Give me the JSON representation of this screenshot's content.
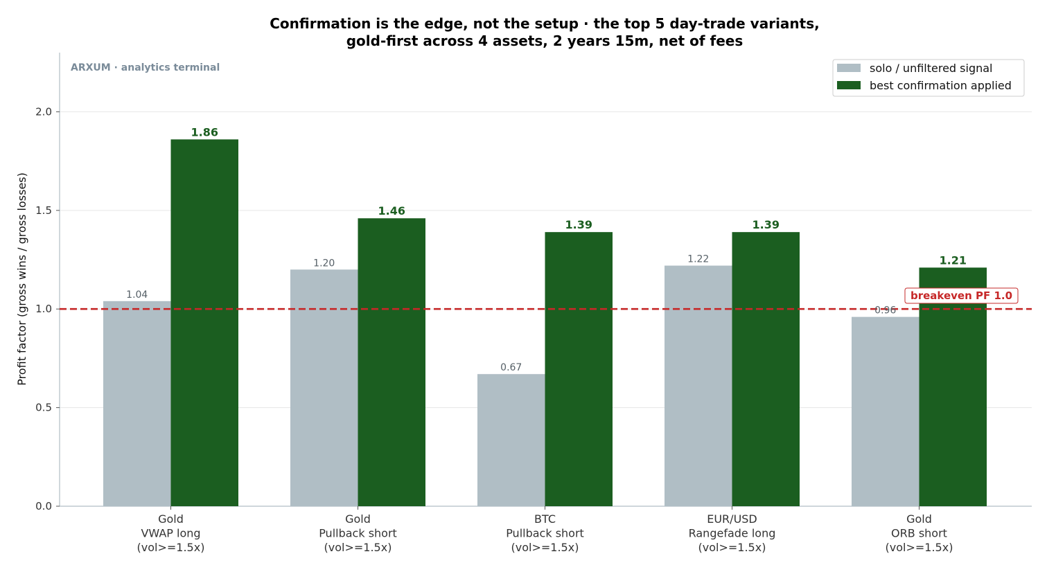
{
  "chart_data": {
    "type": "bar",
    "title_lines": [
      "Confirmation is the edge, not the setup · the top 5 day-trade variants,",
      "gold-first across 4 assets, 2 years 15m, net of fees"
    ],
    "watermark": "ARXUM · analytics terminal",
    "ylabel": "Profit factor (gross wins / gross losses)",
    "xlabel": "",
    "ylim": [
      0,
      2.3
    ],
    "yticks": [
      0.0,
      0.5,
      1.0,
      1.5,
      2.0
    ],
    "ytick_labels": [
      "0.0",
      "0.5",
      "1.0",
      "1.5",
      "2.0"
    ],
    "grid": "horizontal",
    "legend_position": "top-right",
    "categories": [
      [
        "Gold",
        "VWAP long",
        "(vol>=1.5x)"
      ],
      [
        "Gold",
        "Pullback short",
        "(vol>=1.5x)"
      ],
      [
        "BTC",
        "Pullback short",
        "(vol>=1.5x)"
      ],
      [
        "EUR/USD",
        "Rangefade long",
        "(vol>=1.5x)"
      ],
      [
        "Gold",
        "ORB short",
        "(vol>=1.5x)"
      ]
    ],
    "series": [
      {
        "name": "solo / unfiltered signal",
        "color": "#b0bec5",
        "values": [
          1.04,
          1.2,
          0.67,
          1.22,
          0.96
        ],
        "labels": [
          "1.04",
          "1.20",
          "0.67",
          "1.22",
          "0.96"
        ]
      },
      {
        "name": "best confirmation applied",
        "color": "#1b5e20",
        "values": [
          1.86,
          1.46,
          1.39,
          1.39,
          1.21
        ],
        "labels": [
          "1.86",
          "1.46",
          "1.39",
          "1.39",
          "1.21"
        ]
      }
    ],
    "reference_line": {
      "value": 1.0,
      "label": "breakeven PF 1.0",
      "color": "#c62828"
    }
  }
}
